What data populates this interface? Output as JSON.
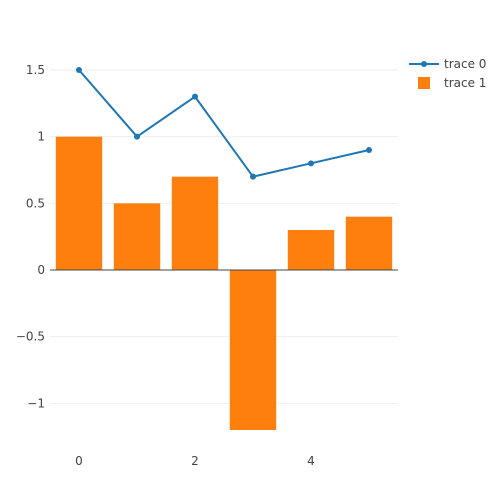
{
  "chart_data": {
    "type": "bar",
    "title": "",
    "xlabel": "",
    "ylabel": "",
    "xlim": [
      -0.5,
      5.5
    ],
    "ylim": [
      -1.2,
      1.65
    ],
    "x": [
      0,
      1,
      2,
      3,
      4,
      5
    ],
    "x_ticks": [
      {
        "value": 0,
        "label": "0"
      },
      {
        "value": 2,
        "label": "2"
      },
      {
        "value": 4,
        "label": "4"
      }
    ],
    "y_ticks": [
      {
        "value": 1.5,
        "label": "1.5"
      },
      {
        "value": 1,
        "label": "1"
      },
      {
        "value": 0.5,
        "label": "0.5"
      },
      {
        "value": 0,
        "label": "0"
      },
      {
        "value": -0.5,
        "label": "−0.5"
      },
      {
        "value": -1,
        "label": "−1"
      }
    ],
    "grid": true,
    "legend_position": "top-right",
    "series": [
      {
        "name": "trace 0",
        "type": "line",
        "mode": "lines+markers",
        "color": "#1f77b4",
        "values": [
          1.5,
          1.0,
          1.3,
          0.7,
          0.8,
          0.9
        ]
      },
      {
        "name": "trace 1",
        "type": "bar",
        "color": "#ff7f0e",
        "values": [
          1.0,
          0.5,
          0.7,
          -1.2,
          0.3,
          0.4
        ]
      }
    ]
  }
}
